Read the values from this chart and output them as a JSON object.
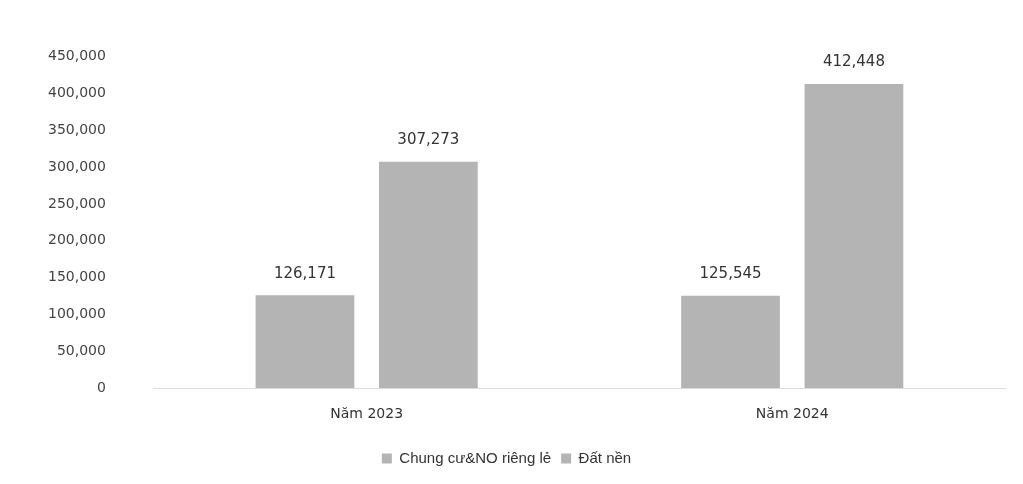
{
  "chart_data": {
    "type": "bar",
    "categories": [
      "Năm 2023",
      "Năm 2024"
    ],
    "series": [
      {
        "name": "Chung cư&NO riêng lẻ",
        "color": "#b4b4b4",
        "values": [
          126171,
          125545
        ],
        "value_labels": [
          "126,171",
          "125,545"
        ]
      },
      {
        "name": "Đất nền",
        "color": "#b4b4b4",
        "values": [
          307273,
          412448
        ],
        "value_labels": [
          "307,273",
          "412,448"
        ]
      }
    ],
    "ylim": [
      0,
      450000
    ],
    "yticks": [
      0,
      {
        "value": 50000,
        "label": "50,000"
      },
      {
        "value": 100000,
        "label": "100,000"
      },
      {
        "value": 150000,
        "label": "150,000"
      },
      {
        "value": 200000,
        "label": "200,000"
      },
      {
        "value": 250000,
        "label": "250,000"
      },
      {
        "value": 300000,
        "label": "300,000"
      },
      {
        "value": 350000,
        "label": "350,000"
      },
      {
        "value": 400000,
        "label": "400,000"
      },
      {
        "value": 450000,
        "label": "450,000"
      }
    ],
    "grid": false,
    "legend": "bottom"
  }
}
